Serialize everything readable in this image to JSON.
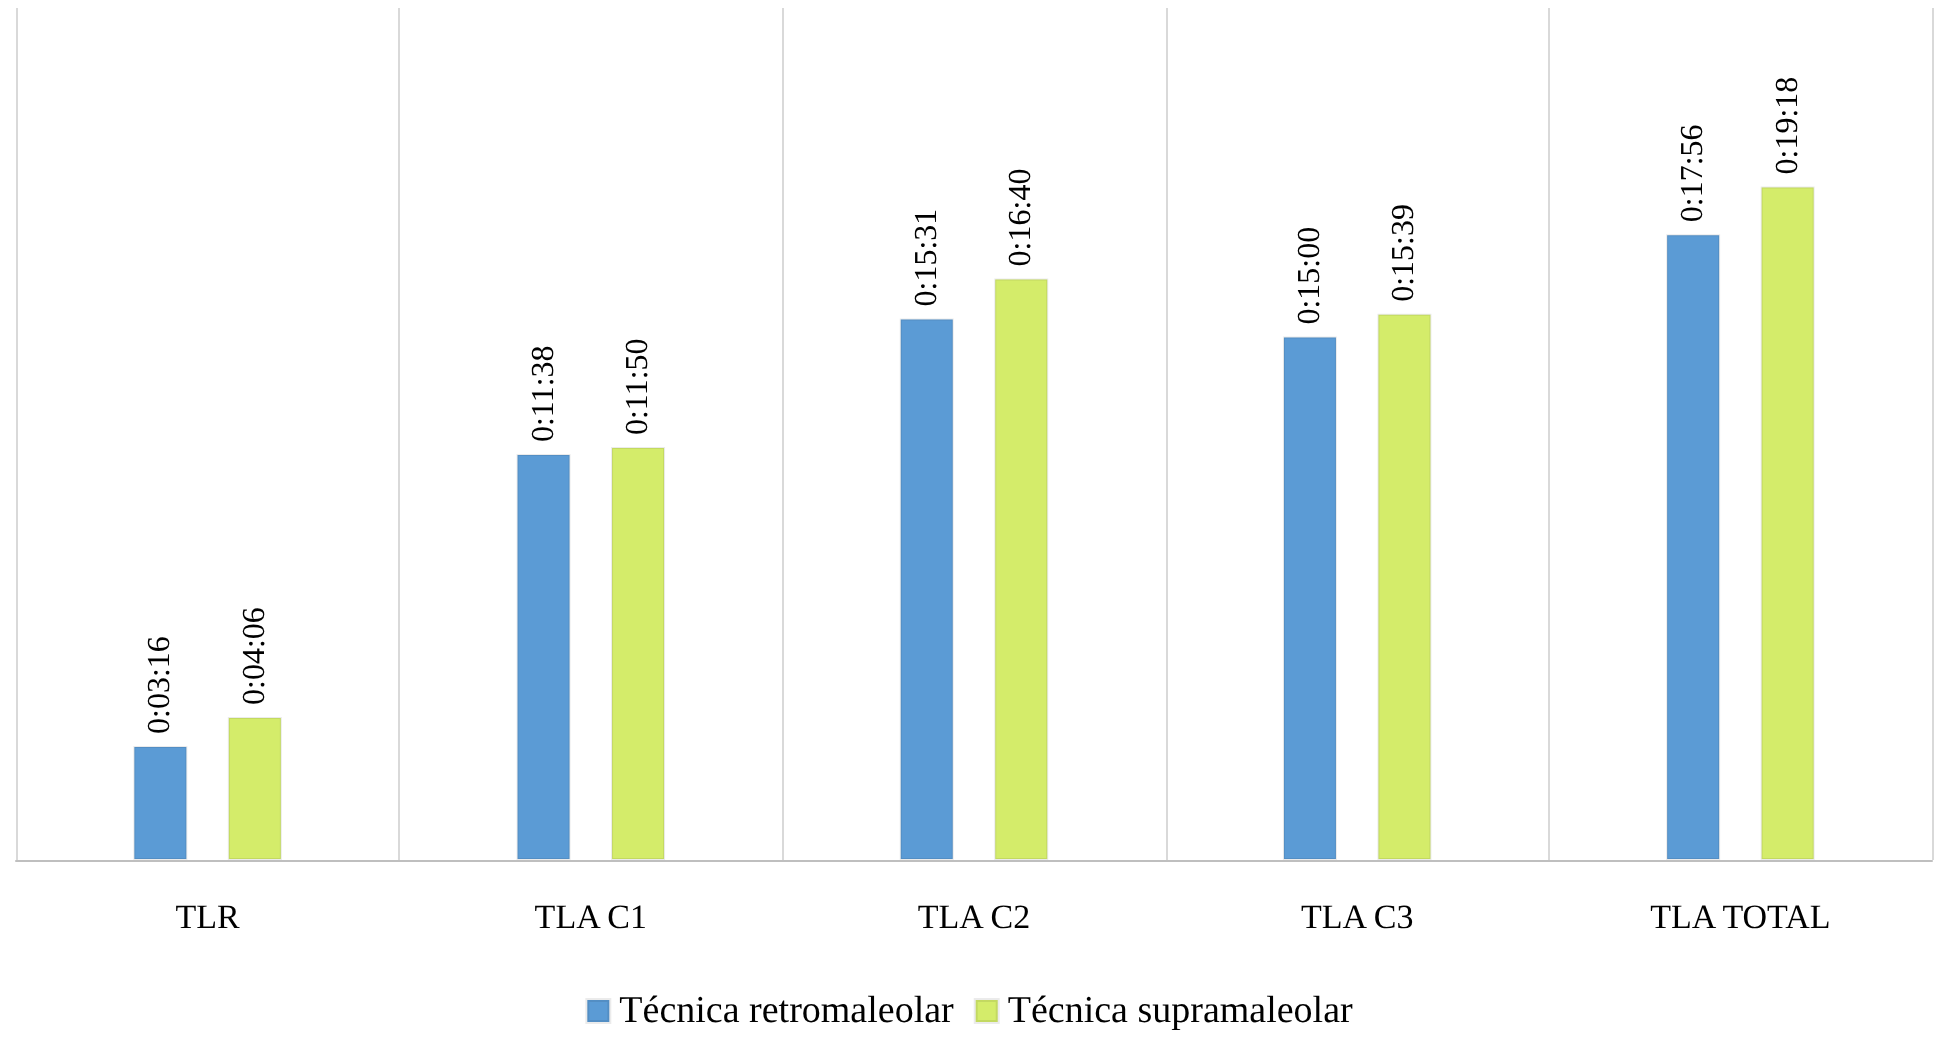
{
  "chart_data": {
    "type": "bar",
    "categories": [
      "TLR",
      "TLA C1",
      "TLA C2",
      "TLA C3",
      "TLA TOTAL"
    ],
    "series": [
      {
        "name": "Técnica retromaleolar",
        "color": "#5b9bd5",
        "values": [
          196,
          698,
          931,
          900,
          1076
        ],
        "value_labels": [
          "0:03:16",
          "0:11:38",
          "0:15:31",
          "0:15:00",
          "0:17:56"
        ]
      },
      {
        "name": "Técnica supramaleolar",
        "color": "#d4ec6a",
        "values": [
          246,
          710,
          1000,
          939,
          1158
        ],
        "value_labels": [
          "0:04:06",
          "0:11:50",
          "0:16:40",
          "0:15:39",
          "0:19:18"
        ]
      }
    ],
    "grid": "x",
    "legend": "bottom"
  }
}
